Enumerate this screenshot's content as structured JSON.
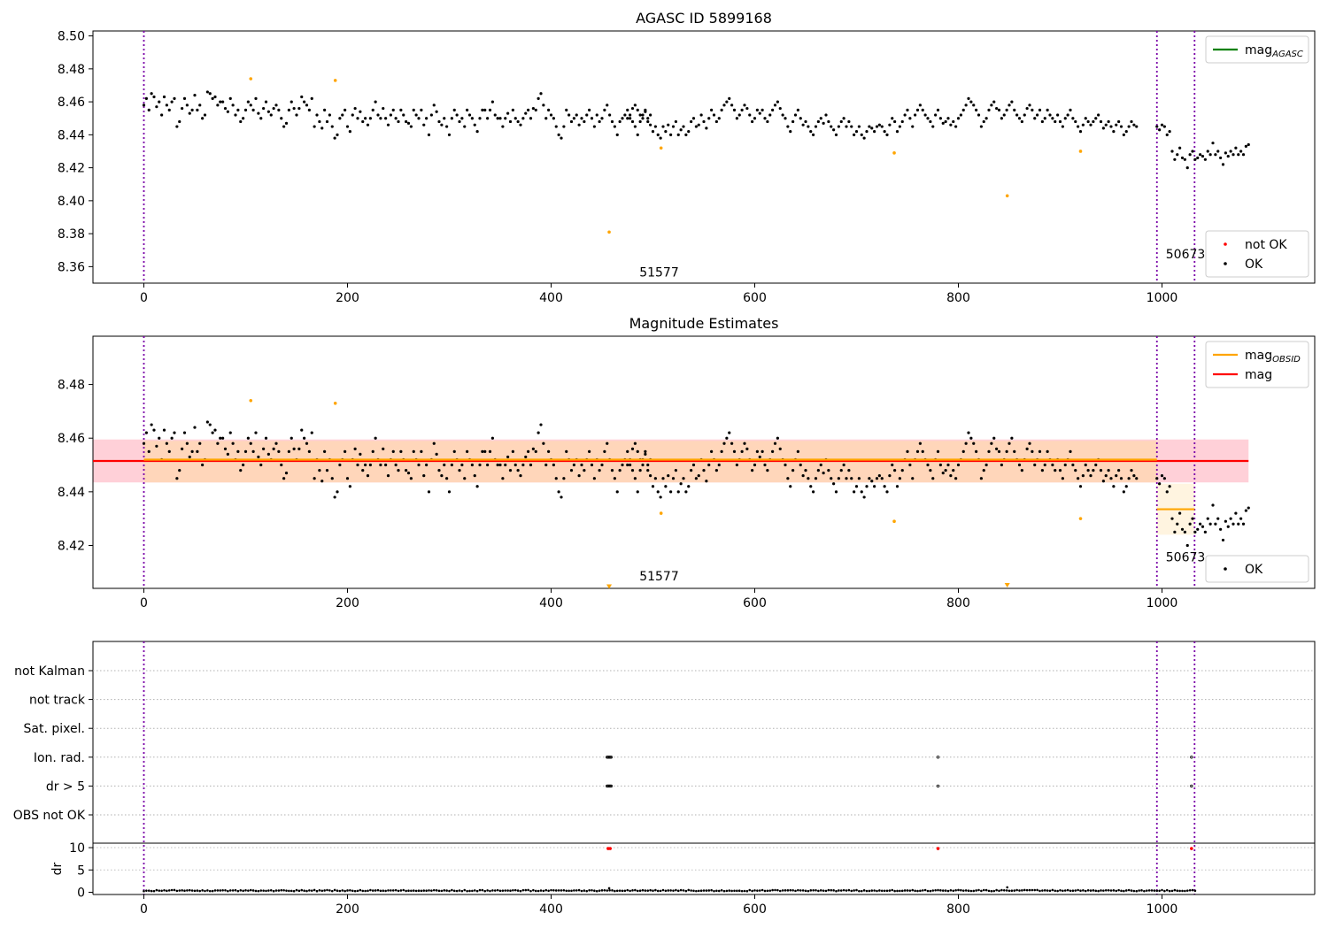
{
  "chart_data": [
    {
      "type": "scatter",
      "title": "AGASC ID 5899168",
      "xlim": [
        -50,
        1150
      ],
      "ylim": [
        8.35,
        8.503
      ],
      "xticks": [
        0,
        200,
        400,
        600,
        800,
        1000
      ],
      "yticks": [
        8.36,
        8.38,
        8.4,
        8.42,
        8.44,
        8.46,
        8.48,
        8.5
      ],
      "ytick_format": 2,
      "grid": false,
      "vlines": [
        0,
        995,
        1032
      ],
      "annotations": [
        {
          "x": 478,
          "y": 8.354,
          "text": "51577"
        },
        {
          "x": 995,
          "y": 8.365,
          "text": "50673"
        }
      ],
      "legends": [
        {
          "placement": "top-right",
          "entries": [
            {
              "label": "mag",
              "sub": "AGASC",
              "color": "#008000",
              "kind": "line"
            }
          ]
        },
        {
          "placement": "bottom-right",
          "entries": [
            {
              "label": "not OK",
              "color": "#ff0000",
              "kind": "dot"
            },
            {
              "label": "OK",
              "color": "#000000",
              "kind": "dot"
            }
          ]
        }
      ],
      "series": [
        {
          "name": "OK",
          "color": "#000000",
          "segments": [
            {
              "start": 0,
              "points": [
                8.458,
                8.462,
                8.455,
                8.465,
                8.463,
                8.457,
                8.46,
                8.452,
                8.463,
                8.458,
                8.455,
                8.46,
                8.462,
                8.445,
                8.448,
                8.456,
                8.462,
                8.458,
                8.453,
                8.455,
                8.464,
                8.455,
                8.458,
                8.45,
                8.452,
                8.466,
                8.465,
                8.462,
                8.463,
                8.458,
                8.46,
                8.46,
                8.456,
                8.454,
                8.462,
                8.458,
                8.452,
                8.455,
                8.448,
                8.45,
                8.455,
                8.46,
                8.458,
                8.455,
                8.462,
                8.453,
                8.45,
                8.456,
                8.46,
                8.454,
                8.452,
                8.456,
                8.458,
                8.455,
                8.45,
                8.445,
                8.447,
                8.455,
                8.46,
                8.456,
                8.452,
                8.456,
                8.463,
                8.46,
                8.458,
                8.455,
                8.462,
                8.445,
                8.452,
                8.448,
                8.444,
                8.455,
                8.448,
                8.452,
                8.445,
                8.438,
                8.44,
                8.45,
                8.452,
                8.455,
                8.445,
                8.442,
                8.452,
                8.456,
                8.45,
                8.454,
                8.448,
                8.45,
                8.446,
                8.45,
                8.455,
                8.46,
                8.452,
                8.45,
                8.456,
                8.45,
                8.446,
                8.452,
                8.455,
                8.45,
                8.448,
                8.455,
                8.452,
                8.448,
                8.447,
                8.445,
                8.455,
                8.452,
                8.45,
                8.455,
                8.446,
                8.45,
                8.44,
                8.452,
                8.458,
                8.454,
                8.448,
                8.446,
                8.45,
                8.445,
                8.44,
                8.45,
                8.455,
                8.452,
                8.448,
                8.45,
                8.445,
                8.455,
                8.452,
                8.45,
                8.446,
                8.442,
                8.45,
                8.455,
                8.455,
                8.45,
                8.455,
                8.46,
                8.452,
                8.45,
                8.45,
                8.445,
                8.45,
                8.453,
                8.448,
                8.455,
                8.45,
                8.448,
                8.446,
                8.45,
                8.453,
                8.455,
                8.45,
                8.456,
                8.455,
                8.462,
                8.465,
                8.458,
                8.45,
                8.455,
                8.452,
                8.45,
                8.445,
                8.44,
                8.438,
                8.445,
                8.455,
                8.452,
                8.448,
                8.45,
                8.452,
                8.446,
                8.45,
                8.448,
                8.452,
                8.455,
                8.45,
                8.445,
                8.452,
                8.448,
                8.45,
                8.455,
                8.458,
                8.452,
                8.448,
                8.445,
                8.44,
                8.448,
                8.45,
                8.452,
                8.455,
                8.45,
                8.456,
                8.458,
                8.455,
                8.452,
                8.45,
                8.455,
                8.448,
                8.452
              ]
            },
            {
              "start": 475,
              "points": [
                8.45,
                8.452,
                8.448,
                8.445,
                8.44,
                8.448,
                8.452,
                8.454,
                8.45,
                8.446,
                8.442,
                8.445,
                8.44,
                8.438,
                8.445,
                8.442,
                8.446,
                8.44,
                8.445,
                8.448,
                8.44,
                8.443,
                8.445,
                8.44,
                8.442,
                8.448,
                8.45,
                8.445,
                8.446,
                8.452,
                8.448,
                8.444,
                8.45,
                8.455,
                8.452,
                8.448,
                8.45,
                8.455,
                8.458,
                8.46,
                8.462,
                8.458,
                8.455,
                8.45,
                8.452,
                8.455,
                8.458,
                8.456,
                8.452,
                8.448,
                8.45,
                8.455,
                8.453,
                8.455,
                8.45,
                8.448,
                8.452,
                8.455,
                8.458,
                8.46,
                8.456,
                8.452,
                8.45,
                8.445,
                8.442,
                8.448,
                8.452,
                8.455,
                8.45,
                8.446,
                8.448,
                8.445,
                8.442,
                8.44,
                8.445,
                8.448,
                8.45,
                8.447,
                8.452,
                8.448,
                8.445,
                8.443,
                8.44,
                8.445,
                8.448,
                8.45,
                8.445,
                8.448,
                8.445,
                8.44,
                8.442,
                8.445,
                8.44,
                8.438,
                8.442,
                8.445,
                8.444,
                8.442,
                8.445,
                8.446,
                8.445,
                8.442,
                8.44,
                8.446,
                8.45,
                8.448,
                8.442,
                8.445,
                8.448,
                8.452,
                8.455,
                8.45,
                8.445,
                8.452,
                8.455,
                8.458,
                8.455,
                8.452,
                8.45,
                8.448,
                8.445,
                8.452,
                8.455,
                8.45,
                8.447,
                8.448,
                8.45,
                8.446,
                8.448,
                8.445,
                8.45,
                8.452,
                8.455,
                8.458,
                8.462,
                8.46,
                8.458,
                8.455,
                8.452,
                8.445,
                8.448,
                8.45,
                8.455,
                8.458,
                8.46,
                8.456,
                8.455,
                8.45,
                8.452,
                8.455,
                8.458,
                8.46,
                8.455,
                8.452,
                8.45,
                8.448,
                8.452,
                8.456,
                8.458,
                8.455,
                8.45,
                8.452,
                8.455,
                8.448,
                8.45,
                8.455,
                8.452,
                8.45,
                8.448,
                8.452,
                8.448,
                8.445,
                8.45,
                8.452,
                8.455,
                8.45,
                8.448,
                8.445,
                8.442,
                8.446,
                8.45,
                8.448,
                8.446,
                8.448,
                8.45,
                8.452,
                8.448,
                8.444,
                8.446,
                8.448,
                8.445,
                8.442,
                8.446,
                8.448,
                8.445,
                8.44,
                8.442,
                8.445,
                8.448,
                8.446,
                8.445
              ]
            },
            {
              "start": 995,
              "points": [
                8.445,
                8.443,
                8.446,
                8.445,
                8.44,
                8.442,
                8.43,
                8.425,
                8.428,
                8.432,
                8.426,
                8.425,
                8.42,
                8.428,
                8.43,
                8.425,
                8.426,
                8.428,
                8.427,
                8.425,
                8.43,
                8.428,
                8.435,
                8.428,
                8.43,
                8.426,
                8.422,
                8.429,
                8.427,
                8.43,
                8.428,
                8.432,
                8.428,
                8.43,
                8.428,
                8.433,
                8.434
              ]
            }
          ]
        },
        {
          "name": "not OK",
          "color": "#ff0000",
          "segments": []
        },
        {
          "name": "flagged",
          "color": "#ffa500",
          "points": [
            [
              105,
              8.474
            ],
            [
              188,
              8.473
            ],
            [
              457,
              8.381
            ],
            [
              508,
              8.432
            ],
            [
              737,
              8.429
            ],
            [
              848,
              8.403
            ],
            [
              920,
              8.43
            ]
          ]
        }
      ]
    },
    {
      "type": "scatter",
      "title": "Magnitude Estimates",
      "xlim": [
        -50,
        1150
      ],
      "ylim": [
        8.404,
        8.498
      ],
      "xticks": [
        0,
        200,
        400,
        600,
        800,
        1000
      ],
      "yticks": [
        8.42,
        8.44,
        8.46,
        8.48
      ],
      "ytick_format": 2,
      "grid": false,
      "vlines": [
        0,
        995,
        1032
      ],
      "annotations": [
        {
          "x": 478,
          "y": 8.407,
          "text": "51577"
        },
        {
          "x": 995,
          "y": 8.414,
          "text": "50673"
        }
      ],
      "bands": [
        {
          "x": [
            -50,
            1085
          ],
          "y": [
            8.4435,
            8.4595
          ],
          "color": "#ffc0cb"
        },
        {
          "x": [
            0,
            995
          ],
          "y": [
            8.4435,
            8.459
          ],
          "color": "#ffd8b0"
        },
        {
          "x": [
            995,
            1032
          ],
          "y": [
            8.424,
            8.443
          ],
          "color": "#fff0d6"
        }
      ],
      "hlines": [
        {
          "name": "mag",
          "y": 8.4515,
          "x": [
            -50,
            1085
          ],
          "color": "#ff0000"
        },
        {
          "name": "mag_OBSID",
          "y": 8.452,
          "x": [
            0,
            995
          ],
          "color": "#ffa500"
        },
        {
          "name": "mag_OBSID",
          "y": 8.4335,
          "x": [
            995,
            1032
          ],
          "color": "#ffa500"
        }
      ],
      "markers": [
        {
          "x": 457,
          "y": 8.4045,
          "color": "#ffa500",
          "shape": "triangle-down"
        },
        {
          "x": 848,
          "y": 8.405,
          "color": "#ffa500",
          "shape": "triangle-down"
        }
      ],
      "legends": [
        {
          "placement": "top-right",
          "entries": [
            {
              "label": "mag",
              "sub": "OBSID",
              "color": "#ffa500",
              "kind": "line"
            },
            {
              "label": "mag",
              "color": "#ff0000",
              "kind": "line"
            }
          ]
        },
        {
          "placement": "bottom-right",
          "entries": [
            {
              "label": "OK",
              "color": "#000000",
              "kind": "dot"
            }
          ]
        }
      ],
      "series_ref": 0
    },
    {
      "type": "scatter",
      "xlim": [
        -50,
        1150
      ],
      "categories": [
        "OBS not OK",
        "dr > 5",
        "Ion. rad.",
        "Sat. pixel.",
        "not track",
        "not Kalman"
      ],
      "grid": true,
      "vlines": [
        0,
        995,
        1032
      ],
      "flags": [
        {
          "category": "Ion. rad.",
          "x": [
            455,
            456,
            457,
            458,
            459,
            780,
            1029
          ]
        },
        {
          "category": "dr > 5",
          "x": [
            455,
            456,
            457,
            458,
            459,
            780,
            1029
          ]
        }
      ]
    },
    {
      "type": "scatter",
      "xlim": [
        -50,
        1150
      ],
      "ylim": [
        -0.5,
        11
      ],
      "xticks": [
        0,
        200,
        400,
        600,
        800,
        1000
      ],
      "yticks": [
        0,
        5,
        10
      ],
      "ylabel": "dr",
      "vlines": [
        0,
        995,
        1032
      ],
      "hlines": [
        {
          "y": 10,
          "color": "#c0c0c0"
        },
        {
          "y": 5,
          "color": "#c0c0c0"
        }
      ],
      "flagged": [
        {
          "x": 456,
          "y": 9.8,
          "color": "#ff0000"
        },
        {
          "x": 458,
          "y": 9.8,
          "color": "#ff0000"
        },
        {
          "x": 780,
          "y": 9.8,
          "color": "#ff0000"
        },
        {
          "x": 1029,
          "y": 9.8,
          "color": "#ff0000"
        }
      ],
      "spikes": [
        {
          "x": 457,
          "y": 0.9
        },
        {
          "x": 848,
          "y": 1.1
        }
      ],
      "series": [
        {
          "color": "#000000",
          "start": 0,
          "end": 1034,
          "baseline": 0.25
        }
      ]
    }
  ]
}
